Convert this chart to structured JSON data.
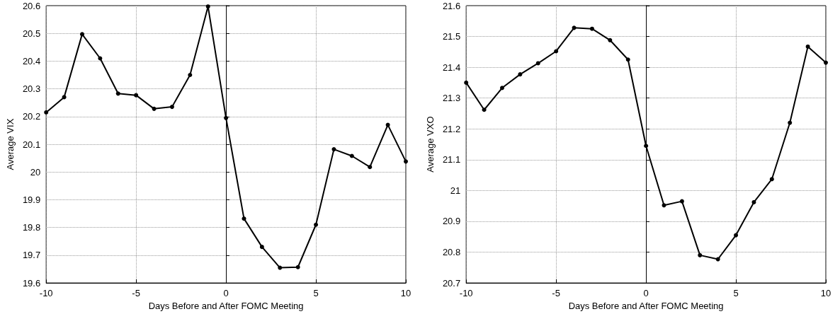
{
  "chart_data": [
    {
      "type": "line",
      "xlabel": "Days Before and After FOMC Meeting",
      "ylabel": "Average VIX",
      "x": [
        -10,
        -9,
        -8,
        -7,
        -6,
        -5,
        -4,
        -3,
        -2,
        -1,
        0,
        1,
        2,
        3,
        4,
        5,
        6,
        7,
        8,
        9,
        10
      ],
      "series": [
        {
          "color": "#000000",
          "values": [
            20.215,
            20.27,
            20.497,
            20.41,
            20.283,
            20.277,
            20.228,
            20.235,
            20.35,
            20.597,
            20.195,
            19.832,
            19.73,
            19.655,
            19.657,
            19.81,
            20.082,
            20.058,
            20.018,
            20.17,
            20.038
          ]
        }
      ],
      "xlim": [
        -10,
        10
      ],
      "xticks": [
        -10,
        -5,
        0,
        5,
        10
      ],
      "ylim": [
        19.6,
        20.6
      ],
      "yticks": [
        19.6,
        19.7,
        19.8,
        19.9,
        20,
        20.1,
        20.2,
        20.3,
        20.4,
        20.5,
        20.6
      ],
      "grid": true,
      "marker": "circle",
      "line_style": "solid"
    },
    {
      "type": "line",
      "xlabel": "Days Before and After FOMC Meeting",
      "ylabel": "Average VXO",
      "x": [
        -10,
        -9,
        -8,
        -7,
        -6,
        -5,
        -4,
        -3,
        -2,
        -1,
        0,
        1,
        2,
        3,
        4,
        5,
        6,
        7,
        8,
        9,
        10
      ],
      "series": [
        {
          "color": "#000000",
          "values": [
            21.35,
            21.262,
            21.333,
            21.377,
            21.413,
            21.452,
            21.528,
            21.525,
            21.488,
            21.425,
            21.145,
            20.952,
            20.965,
            20.79,
            20.777,
            20.855,
            20.962,
            21.037,
            21.22,
            21.467,
            21.415
          ]
        }
      ],
      "xlim": [
        -10,
        10
      ],
      "xticks": [
        -10,
        -5,
        0,
        5,
        10
      ],
      "ylim": [
        20.7,
        21.6
      ],
      "yticks": [
        20.7,
        20.8,
        20.9,
        21,
        21.1,
        21.2,
        21.3,
        21.4,
        21.5,
        21.6
      ],
      "grid": true,
      "marker": "circle",
      "line_style": "solid"
    }
  ]
}
